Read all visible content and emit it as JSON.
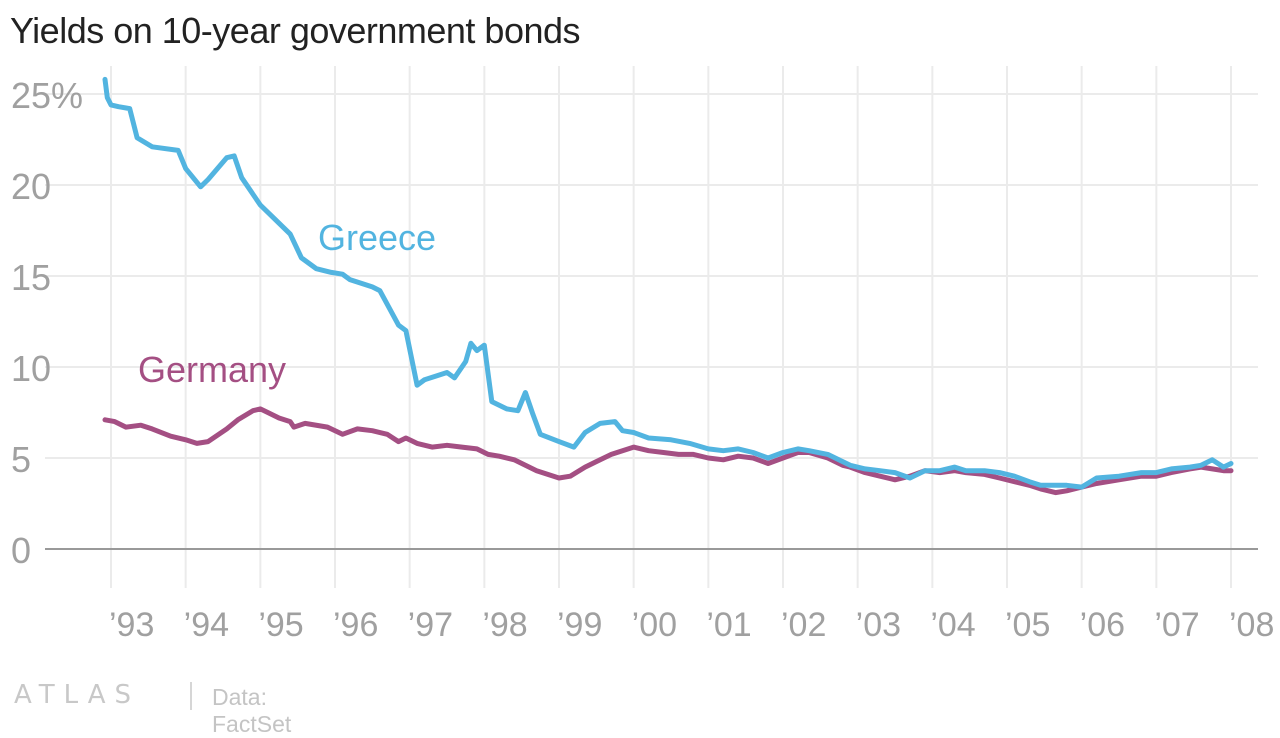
{
  "chart_data": {
    "type": "line",
    "title": "Yields on 10-year government bonds",
    "xlabel": "",
    "ylabel": "",
    "x_tick_labels": [
      "’93",
      "’94",
      "’95",
      "’96",
      "’97",
      "’98",
      "’99",
      "’00",
      "’01",
      "’02",
      "’03",
      "’04",
      "’05",
      "’06",
      "’07",
      "’08"
    ],
    "y_ticks": [
      0,
      5,
      10,
      15,
      20,
      25
    ],
    "y_tick_labels": [
      "0",
      "5",
      "10",
      "15",
      "20",
      "25%"
    ],
    "xlim": [
      1992,
      2008.1
    ],
    "ylim": [
      0,
      26
    ],
    "grid": true,
    "series": [
      {
        "name": "Greece",
        "color": "#52b4e0",
        "x": [
          1992.92,
          1992.95,
          1993.0,
          1993.1,
          1993.25,
          1993.35,
          1993.55,
          1993.9,
          1994.0,
          1994.2,
          1994.3,
          1994.55,
          1994.65,
          1994.75,
          1995.0,
          1995.2,
          1995.4,
          1995.55,
          1995.75,
          1995.95,
          1996.1,
          1996.2,
          1996.35,
          1996.5,
          1996.6,
          1996.85,
          1996.95,
          1997.1,
          1997.2,
          1997.35,
          1997.5,
          1997.6,
          1997.75,
          1997.82,
          1997.9,
          1998.0,
          1998.1,
          1998.3,
          1998.45,
          1998.55,
          1998.65,
          1998.75,
          1999.0,
          1999.2,
          1999.35,
          1999.55,
          1999.75,
          1999.85,
          2000.0,
          2000.2,
          2000.5,
          2000.75,
          2001.0,
          2001.2,
          2001.4,
          2001.6,
          2001.8,
          2002.0,
          2002.2,
          2002.35,
          2002.6,
          2002.8,
          2002.9,
          2003.1,
          2003.3,
          2003.5,
          2003.7,
          2003.9,
          2004.1,
          2004.3,
          2004.45,
          2004.7,
          2004.9,
          2005.1,
          2005.3,
          2005.45,
          2005.65,
          2005.8,
          2006.0,
          2006.2,
          2006.5,
          2006.8,
          2007.0,
          2007.2,
          2007.45,
          2007.6,
          2007.75,
          2007.9,
          2008.0
        ],
        "values": [
          25.8,
          24.8,
          24.4,
          24.3,
          24.2,
          22.6,
          22.1,
          21.9,
          20.9,
          19.9,
          20.3,
          21.5,
          21.6,
          20.4,
          18.9,
          18.1,
          17.3,
          16.0,
          15.4,
          15.2,
          15.1,
          14.8,
          14.6,
          14.4,
          14.2,
          12.3,
          12.0,
          9.0,
          9.3,
          9.5,
          9.7,
          9.4,
          10.3,
          11.3,
          10.9,
          11.2,
          8.1,
          7.7,
          7.6,
          8.6,
          7.4,
          6.3,
          5.9,
          5.6,
          6.4,
          6.9,
          7.0,
          6.5,
          6.4,
          6.1,
          6.0,
          5.8,
          5.5,
          5.4,
          5.5,
          5.3,
          5.0,
          5.3,
          5.5,
          5.4,
          5.2,
          4.8,
          4.6,
          4.4,
          4.3,
          4.2,
          3.9,
          4.3,
          4.3,
          4.5,
          4.3,
          4.3,
          4.2,
          4.0,
          3.7,
          3.5,
          3.5,
          3.5,
          3.4,
          3.9,
          4.0,
          4.2,
          4.2,
          4.4,
          4.5,
          4.6,
          4.9,
          4.5,
          4.7
        ]
      },
      {
        "name": "Germany",
        "color": "#a44f83",
        "x": [
          1992.92,
          1993.05,
          1993.2,
          1993.4,
          1993.55,
          1993.8,
          1994.0,
          1994.15,
          1994.3,
          1994.55,
          1994.7,
          1994.9,
          1995.0,
          1995.1,
          1995.25,
          1995.4,
          1995.45,
          1995.6,
          1995.9,
          1996.1,
          1996.3,
          1996.5,
          1996.7,
          1996.85,
          1996.95,
          1997.1,
          1997.3,
          1997.5,
          1997.7,
          1997.9,
          1998.05,
          1998.2,
          1998.4,
          1998.55,
          1998.7,
          1998.85,
          1999.0,
          1999.15,
          1999.35,
          1999.5,
          1999.7,
          1999.85,
          2000.0,
          2000.2,
          2000.4,
          2000.6,
          2000.8,
          2001.0,
          2001.2,
          2001.4,
          2001.6,
          2001.8,
          2002.0,
          2002.2,
          2002.35,
          2002.6,
          2002.8,
          2002.9,
          2003.1,
          2003.3,
          2003.5,
          2003.7,
          2003.9,
          2004.1,
          2004.3,
          2004.45,
          2004.7,
          2004.9,
          2005.1,
          2005.3,
          2005.45,
          2005.65,
          2005.8,
          2006.0,
          2006.2,
          2006.5,
          2006.8,
          2007.0,
          2007.2,
          2007.45,
          2007.6,
          2007.75,
          2007.9,
          2008.0
        ],
        "values": [
          7.1,
          7.0,
          6.7,
          6.8,
          6.6,
          6.2,
          6.0,
          5.8,
          5.9,
          6.6,
          7.1,
          7.6,
          7.7,
          7.5,
          7.2,
          7.0,
          6.7,
          6.9,
          6.7,
          6.3,
          6.6,
          6.5,
          6.3,
          5.9,
          6.1,
          5.8,
          5.6,
          5.7,
          5.6,
          5.5,
          5.2,
          5.1,
          4.9,
          4.6,
          4.3,
          4.1,
          3.9,
          4.0,
          4.5,
          4.8,
          5.2,
          5.4,
          5.6,
          5.4,
          5.3,
          5.2,
          5.2,
          5.0,
          4.9,
          5.1,
          5.0,
          4.7,
          5.0,
          5.3,
          5.3,
          5.0,
          4.6,
          4.5,
          4.2,
          4.0,
          3.8,
          4.0,
          4.3,
          4.2,
          4.3,
          4.2,
          4.1,
          3.9,
          3.7,
          3.5,
          3.3,
          3.1,
          3.2,
          3.4,
          3.6,
          3.8,
          4.0,
          4.0,
          4.2,
          4.4,
          4.5,
          4.4,
          4.3,
          4.3
        ]
      }
    ]
  },
  "footer": {
    "logo": "ATLAS",
    "source": "Data: FactSet"
  }
}
